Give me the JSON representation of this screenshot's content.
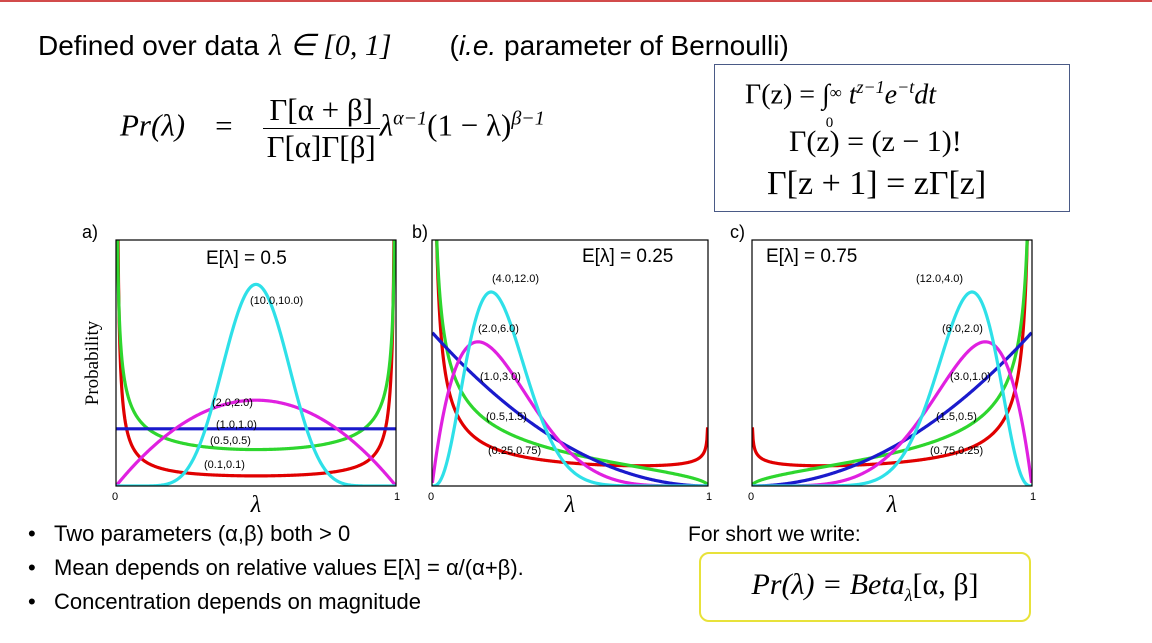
{
  "header": {
    "text": "Defined over data",
    "domain": "λ ∈ [0, 1]",
    "ie_prefix": "(",
    "ie_italic": "i.e.",
    "ie_rest": " parameter of Bernoulli)"
  },
  "formula": {
    "lhs": "Pr(λ)",
    "eq": "=",
    "numerator": "Γ[α + β]",
    "denominator": "Γ[α]Γ[β]",
    "tail": "λ",
    "exp1": "α−1",
    "tail2": "(1 − λ)",
    "exp2": "β−1"
  },
  "gamma_box": {
    "line1_a": "Γ(z) = ∫",
    "line1_sub": "0",
    "line1_sup": "∞",
    "line1_b": " t",
    "line1_sup2": "z−1",
    "line1_c": "e",
    "line1_sup3": "−t",
    "line1_d": "dt",
    "line2": "Γ(z) = (z − 1)!",
    "line3": "Γ[z + 1] = zΓ[z]"
  },
  "panels": [
    {
      "label": "a)",
      "expectation": "E[λ] = 0.5",
      "xmin": "0",
      "xmax": "1",
      "xlabel": "λ",
      "ylabel": "Probability"
    },
    {
      "label": "b)",
      "expectation": "E[λ] = 0.25",
      "xmin": "0",
      "xmax": "1",
      "xlabel": "λ",
      "ylabel": ""
    },
    {
      "label": "c)",
      "expectation": "E[λ] = 0.75",
      "xmin": "0",
      "xmax": "1",
      "xlabel": "λ",
      "ylabel": ""
    }
  ],
  "chart_data": [
    {
      "type": "line",
      "x": [
        0,
        1
      ],
      "ylabel": "Probability",
      "xlabel": "λ",
      "annotation": "E[λ] = 0.5",
      "series": [
        {
          "name": "(0.1,0.1)",
          "alpha": 0.1,
          "beta": 0.1,
          "color": "#e00000"
        },
        {
          "name": "(0.5,0.5)",
          "alpha": 0.5,
          "beta": 0.5,
          "color": "#2ed62e"
        },
        {
          "name": "(1.0,1.0)",
          "alpha": 1.0,
          "beta": 1.0,
          "color": "#1a1acc"
        },
        {
          "name": "(2.0,2.0)",
          "alpha": 2.0,
          "beta": 2.0,
          "color": "#e020e0"
        },
        {
          "name": "(10.0,10.0)",
          "alpha": 10.0,
          "beta": 10.0,
          "color": "#2ee0e8"
        }
      ]
    },
    {
      "type": "line",
      "x": [
        0,
        1
      ],
      "xlabel": "λ",
      "annotation": "E[λ] = 0.25",
      "series": [
        {
          "name": "(0.25,0.75)",
          "alpha": 0.25,
          "beta": 0.75,
          "color": "#e00000"
        },
        {
          "name": "(0.5,1.5)",
          "alpha": 0.5,
          "beta": 1.5,
          "color": "#2ed62e"
        },
        {
          "name": "(1.0,3.0)",
          "alpha": 1.0,
          "beta": 3.0,
          "color": "#1a1acc"
        },
        {
          "name": "(2.0,6.0)",
          "alpha": 2.0,
          "beta": 6.0,
          "color": "#e020e0"
        },
        {
          "name": "(4.0,12.0)",
          "alpha": 4.0,
          "beta": 12.0,
          "color": "#2ee0e8"
        }
      ]
    },
    {
      "type": "line",
      "x": [
        0,
        1
      ],
      "xlabel": "λ",
      "annotation": "E[λ] = 0.75",
      "series": [
        {
          "name": "(0.75,0.25)",
          "alpha": 0.75,
          "beta": 0.25,
          "color": "#e00000"
        },
        {
          "name": "(1.5,0.5)",
          "alpha": 1.5,
          "beta": 0.5,
          "color": "#2ed62e"
        },
        {
          "name": "(3.0,1.0)",
          "alpha": 3.0,
          "beta": 1.0,
          "color": "#1a1acc"
        },
        {
          "name": "(6.0,2.0)",
          "alpha": 6.0,
          "beta": 2.0,
          "color": "#e020e0"
        },
        {
          "name": "(12.0,4.0)",
          "alpha": 12.0,
          "beta": 4.0,
          "color": "#2ee0e8"
        }
      ]
    }
  ],
  "bullets": [
    "Two parameters (α,β) both > 0",
    "Mean depends on relative values E[λ] = α/(α+β).",
    "Concentration depends on magnitude"
  ],
  "short": {
    "label": "For short we write:",
    "formula": "Pr(λ) = Beta",
    "sub": "λ",
    "args": "[α, β]"
  }
}
